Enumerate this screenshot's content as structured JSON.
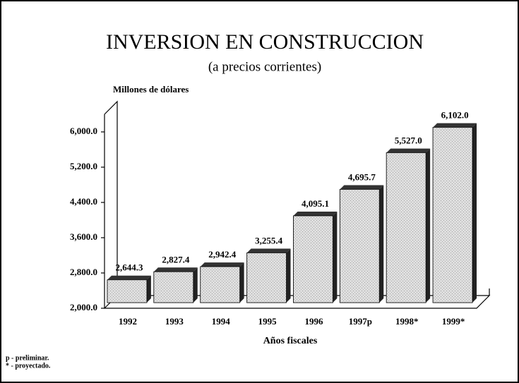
{
  "chart_data": {
    "type": "bar3d",
    "title": "INVERSION EN CONSTRUCCION",
    "subtitle": "(a precios corrientes)",
    "y_axis_label": "Millones de dólares",
    "x_axis_label": "Años fiscales",
    "categories": [
      "1992",
      "1993",
      "1994",
      "1995",
      "1996",
      "1997p",
      "1998*",
      "1999*"
    ],
    "values": [
      2644.3,
      2827.4,
      2942.4,
      3255.4,
      4095.1,
      4695.7,
      5527.0,
      6102.0
    ],
    "value_labels": [
      "2,644.3",
      "2,827.4",
      "2,942.4",
      "3,255.4",
      "4,095.1",
      "4,695.7",
      "5,527.0",
      "6,102.0"
    ],
    "color": "#d4d4d4",
    "ylim": [
      2000,
      6400
    ],
    "yticks": [
      {
        "value": 2000,
        "label": "2,000.0"
      },
      {
        "value": 2800,
        "label": "2,800.0"
      },
      {
        "value": 3600,
        "label": "3,600.0"
      },
      {
        "value": 4400,
        "label": "4,400.0"
      },
      {
        "value": 5200,
        "label": "5,200.0"
      },
      {
        "value": 6000,
        "label": "6,000.0"
      }
    ],
    "notes": [
      "p - preliminar.",
      "* - proyectado."
    ]
  }
}
